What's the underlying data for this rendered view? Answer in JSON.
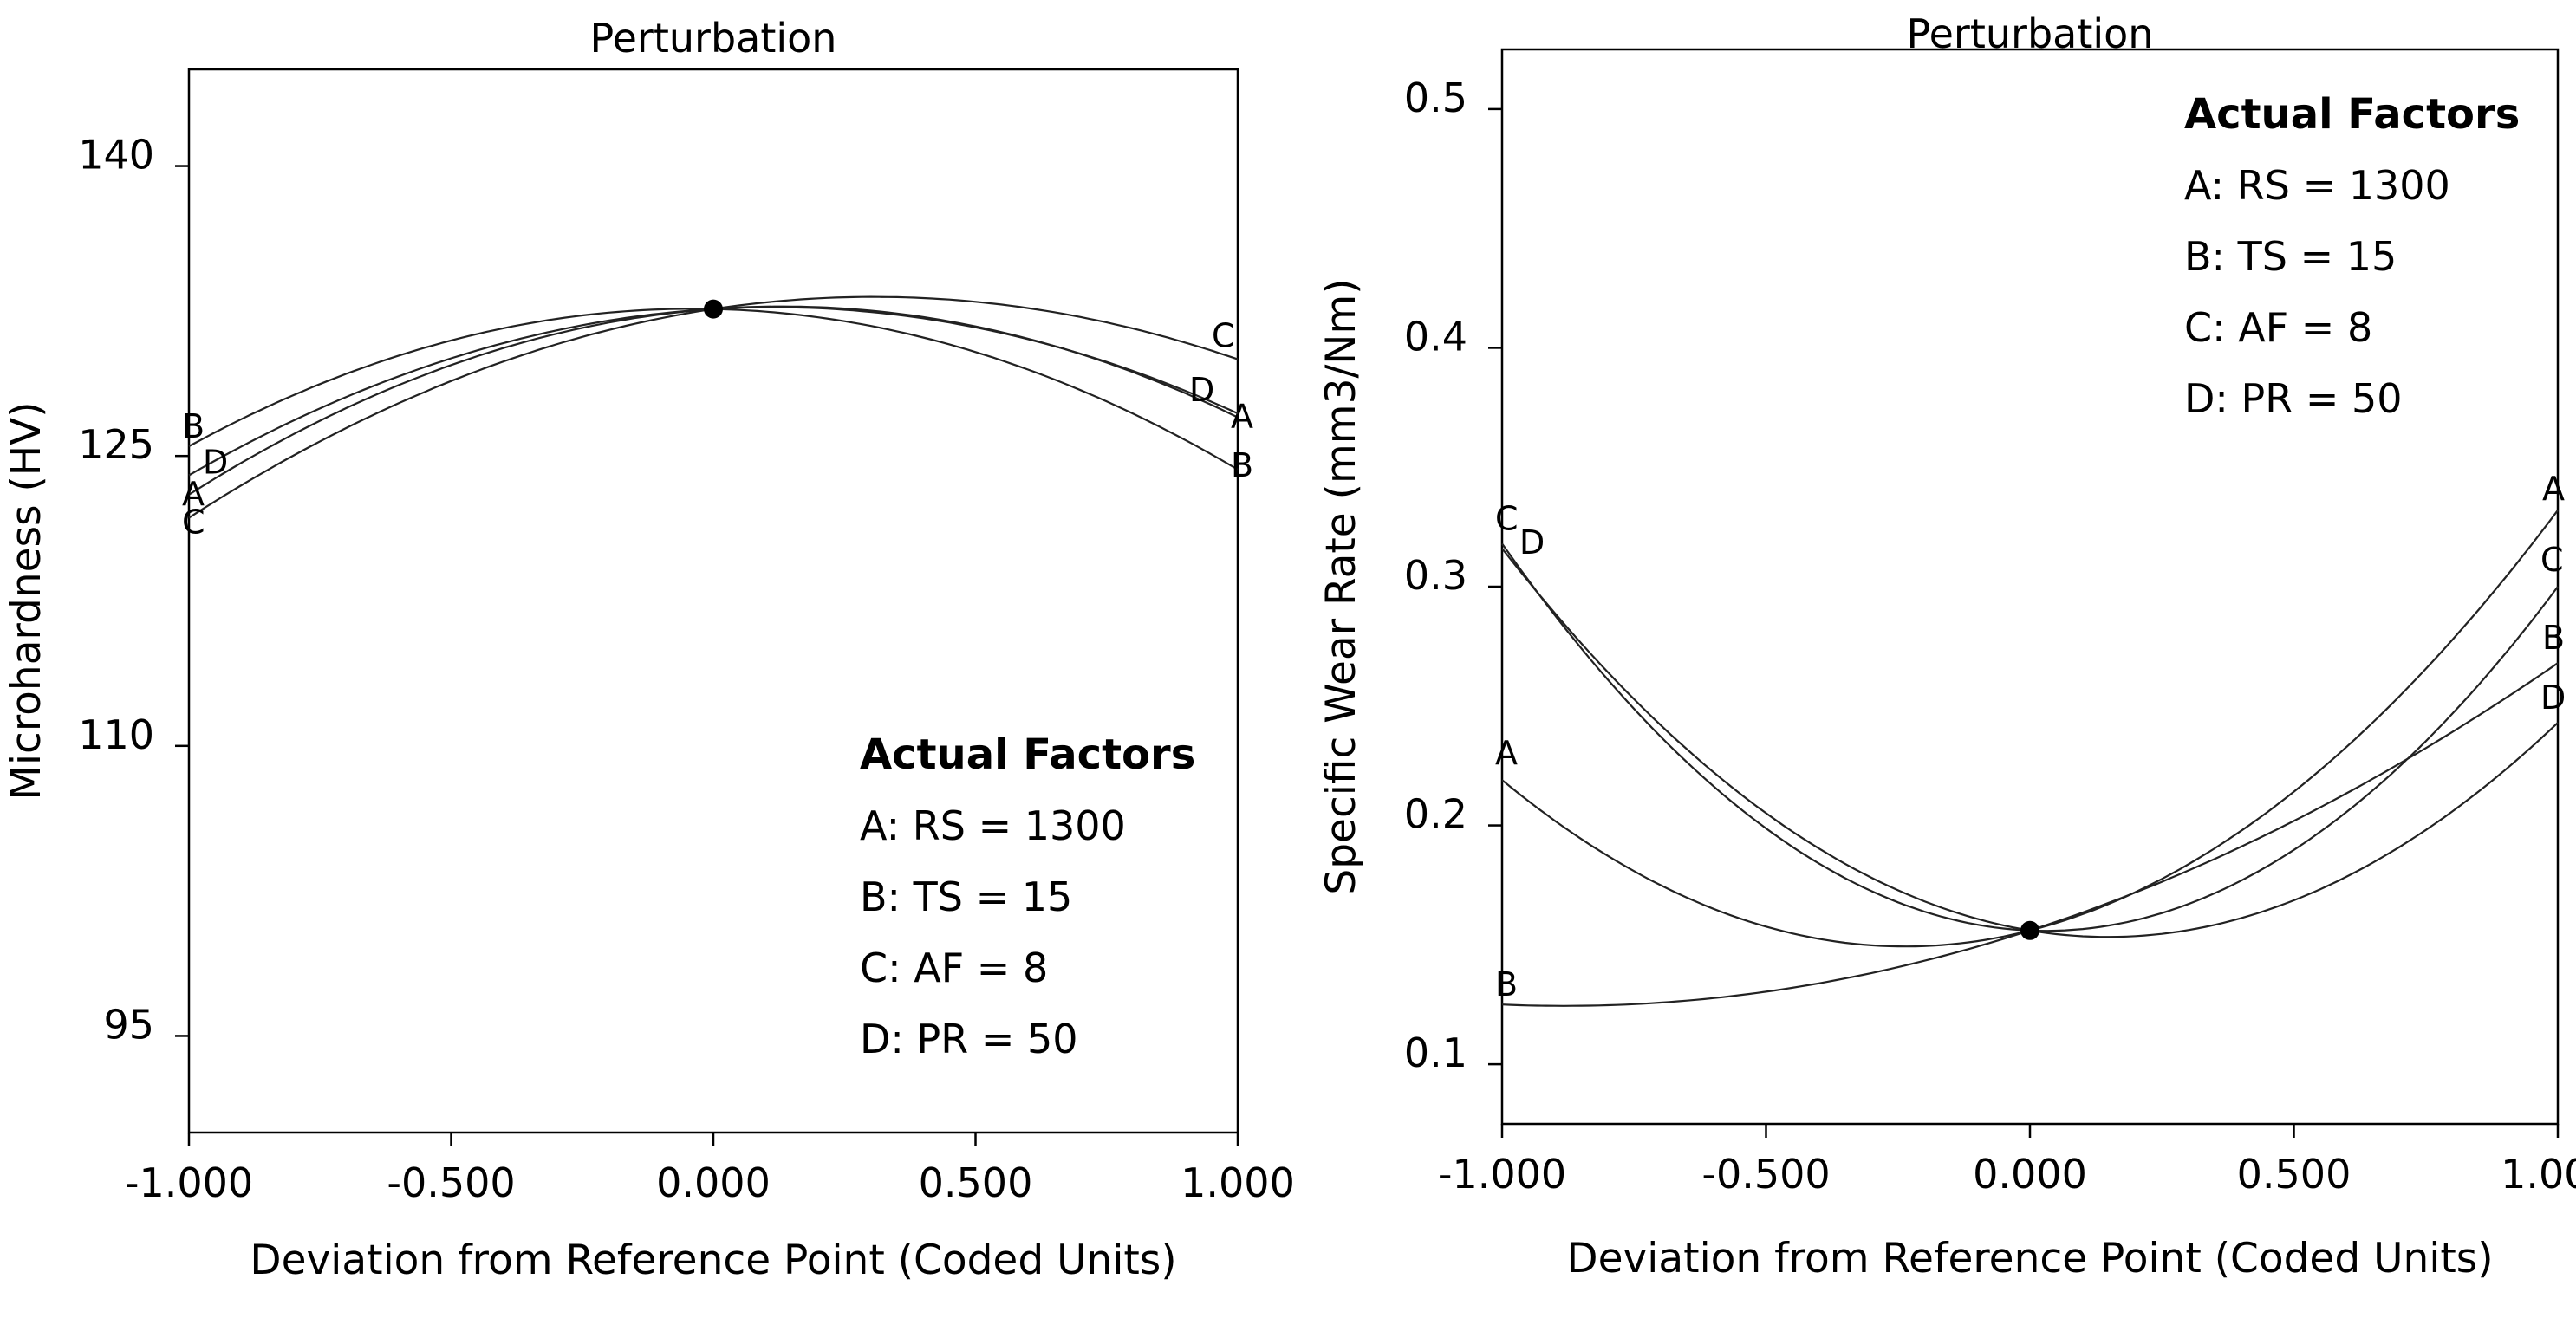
{
  "chart_data": [
    {
      "type": "line",
      "title": "Perturbation",
      "xlabel": "Deviation from Reference Point (Coded Units)",
      "ylabel": "Microhardness (HV)",
      "xlim": [
        -1,
        1
      ],
      "ylim": [
        90,
        145
      ],
      "x_ticks": [
        "-1.000",
        "-0.500",
        "0.000",
        "0.500",
        "1.000"
      ],
      "x_tick_values": [
        -1,
        -0.5,
        0,
        0.5,
        1
      ],
      "y_ticks": [
        "95",
        "110",
        "125",
        "140"
      ],
      "y_tick_values": [
        95,
        110,
        125,
        140
      ],
      "reference_point": {
        "x": 0,
        "y": 132.6
      },
      "series": [
        {
          "name": "A",
          "x": [
            -1,
            0,
            1
          ],
          "y": [
            123.0,
            132.6,
            127.0
          ]
        },
        {
          "name": "B",
          "x": [
            -1,
            0,
            1
          ],
          "y": [
            125.5,
            132.6,
            124.3
          ]
        },
        {
          "name": "C",
          "x": [
            -1,
            0,
            1
          ],
          "y": [
            121.8,
            132.6,
            130.0
          ]
        },
        {
          "name": "D",
          "x": [
            -1,
            0,
            1
          ],
          "y": [
            124.0,
            132.6,
            127.2
          ]
        }
      ],
      "legend": {
        "heading": "Actual Factors",
        "items": [
          "A: RS = 1300",
          "B: TS = 15",
          "C: AF = 8",
          "D: PR = 50"
        ],
        "placement": "bottom-right"
      }
    },
    {
      "type": "line",
      "title": "Perturbation",
      "xlabel": "Deviation from Reference Point (Coded Units)",
      "ylabel": "Specific Wear Rate (mm3/Nm)",
      "xlim": [
        -1,
        1
      ],
      "ylim": [
        0.075,
        0.525
      ],
      "x_ticks": [
        "-1.000",
        "-0.500",
        "0.000",
        "0.500",
        "1.000"
      ],
      "x_tick_values": [
        -1,
        -0.5,
        0,
        0.5,
        1
      ],
      "y_ticks": [
        "0.1",
        "0.2",
        "0.3",
        "0.4",
        "0.5"
      ],
      "y_tick_values": [
        0.1,
        0.2,
        0.3,
        0.4,
        0.5
      ],
      "reference_point": {
        "x": 0,
        "y": 0.156
      },
      "series": [
        {
          "name": "A",
          "x": [
            -1,
            0,
            1
          ],
          "y": [
            0.219,
            0.156,
            0.332
          ]
        },
        {
          "name": "B",
          "x": [
            -1,
            0,
            1
          ],
          "y": [
            0.125,
            0.156,
            0.268
          ]
        },
        {
          "name": "C",
          "x": [
            -1,
            0,
            1
          ],
          "y": [
            0.318,
            0.156,
            0.3
          ]
        },
        {
          "name": "D",
          "x": [
            -1,
            0,
            1
          ],
          "y": [
            0.316,
            0.156,
            0.243
          ]
        }
      ],
      "legend": {
        "heading": "Actual Factors",
        "items": [
          "A: RS = 1300",
          "B: TS = 15",
          "C: AF = 8",
          "D: PR = 50"
        ],
        "placement": "top-right"
      }
    }
  ]
}
